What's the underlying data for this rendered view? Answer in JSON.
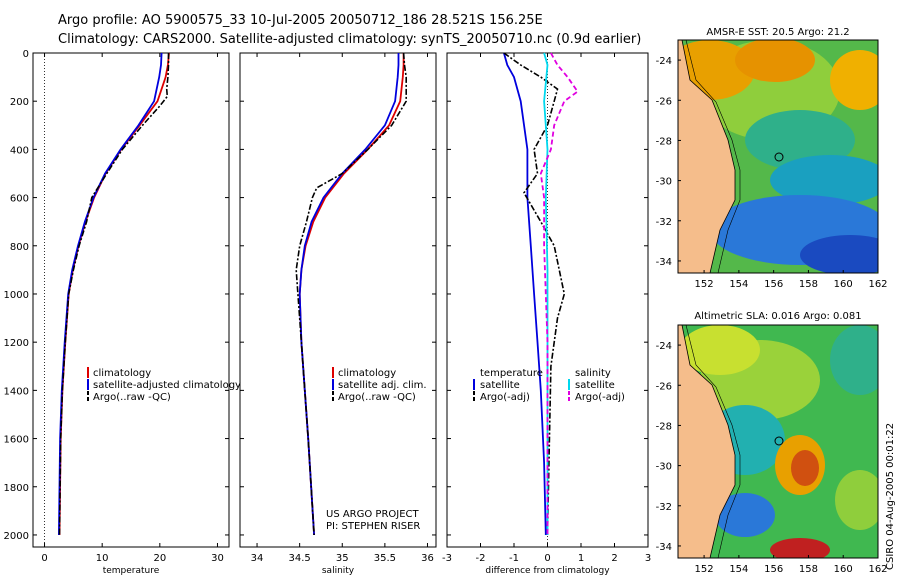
{
  "header": {
    "line1": "Argo profile: AO 5900575_33 10-Jul-2005 20050712_186 28.521S 156.25E",
    "line2": "Climatology: CARS2000. Satellite-adjusted climatology: synTS_20050710.nc (0.9d earlier)"
  },
  "credit": {
    "line1": "US ARGO PROJECT",
    "line2": "PI: STEPHEN RISER"
  },
  "side_caption": "CSIRO 04-Aug-2005 00:01:22",
  "colors": {
    "climatology": "#dd0000",
    "satellite": "#0000dd",
    "argo": "#000000",
    "cyan": "#00d8ee",
    "magenta": "#e000e0",
    "land": "#f5bd8b"
  },
  "chart_data": [
    {
      "type": "line",
      "title": "",
      "xlabel": "temperature",
      "ylabel": "",
      "xlim": [
        -2,
        32
      ],
      "ylim": [
        2050,
        0
      ],
      "xticks": [
        "0",
        "10",
        "20",
        "30"
      ],
      "yticks": [
        "0",
        "200",
        "400",
        "600",
        "800",
        "1000",
        "1200",
        "1400",
        "1600",
        "1800",
        "2000"
      ],
      "legend": [
        "climatology",
        "satellite-adjusted climatology",
        "Argo(..raw -QC)"
      ],
      "series": [
        {
          "name": "climatology",
          "color": "red",
          "dash": "solid",
          "x": [
            21.6,
            21.4,
            21.0,
            19.6,
            16.5,
            13.3,
            10.6,
            8.6,
            7.1,
            5.9,
            4.9,
            4.2,
            3.6,
            3.1,
            2.8,
            2.6
          ],
          "y": [
            0,
            50,
            100,
            200,
            300,
            400,
            500,
            600,
            700,
            800,
            900,
            1000,
            1200,
            1400,
            1600,
            2000
          ]
        },
        {
          "name": "satellite-adjusted climatology",
          "color": "blue",
          "dash": "solid",
          "x": [
            20.3,
            20.2,
            19.9,
            19.0,
            16.3,
            13.2,
            10.5,
            8.5,
            7.0,
            5.8,
            4.8,
            4.1,
            3.5,
            3.0,
            2.7,
            2.5
          ],
          "y": [
            0,
            50,
            100,
            200,
            300,
            400,
            500,
            600,
            700,
            800,
            900,
            1000,
            1200,
            1400,
            1600,
            2000
          ]
        },
        {
          "name": "Argo(..raw -QC)",
          "color": "black",
          "dash": "dashdot",
          "x": [
            21.5,
            21.5,
            21.4,
            21.2,
            21.3,
            20.0,
            17.0,
            13.5,
            10.8,
            8.7,
            8.2,
            7.3,
            6.0,
            5.0,
            4.2,
            3.6,
            3.1,
            2.8,
            2.6
          ],
          "y": [
            0,
            50,
            100,
            150,
            180,
            220,
            300,
            400,
            500,
            580,
            600,
            700,
            800,
            900,
            1000,
            1200,
            1400,
            1600,
            2000
          ]
        }
      ]
    },
    {
      "type": "line",
      "title": "",
      "xlabel": "salinity",
      "ylabel": "",
      "xlim": [
        33.8,
        36.1
      ],
      "ylim": [
        2050,
        0
      ],
      "xticks": [
        "34",
        "34.5",
        "35",
        "35.5",
        "36"
      ],
      "yticks": [],
      "legend": [
        "climatology",
        "satellite adj. clim.",
        "Argo(..raw -QC)"
      ],
      "series": [
        {
          "name": "climatology",
          "color": "red",
          "dash": "solid",
          "x": [
            35.72,
            35.72,
            35.71,
            35.68,
            35.55,
            35.3,
            35.02,
            34.8,
            34.66,
            34.57,
            34.52,
            34.5,
            34.52,
            34.56,
            34.6,
            34.67
          ],
          "y": [
            0,
            50,
            100,
            200,
            300,
            400,
            500,
            600,
            700,
            800,
            900,
            1000,
            1200,
            1400,
            1600,
            2000
          ]
        },
        {
          "name": "satellite adj. clim.",
          "color": "blue",
          "dash": "solid",
          "x": [
            35.66,
            35.66,
            35.65,
            35.62,
            35.5,
            35.27,
            35.0,
            34.78,
            34.64,
            34.56,
            34.52,
            34.5,
            34.52,
            34.56,
            34.6,
            34.67
          ],
          "y": [
            0,
            50,
            100,
            200,
            300,
            400,
            500,
            600,
            700,
            800,
            900,
            1000,
            1200,
            1400,
            1600,
            2000
          ]
        },
        {
          "name": "Argo(..raw -QC)",
          "color": "black",
          "dash": "dashdot",
          "x": [
            35.72,
            35.73,
            35.75,
            35.75,
            35.58,
            35.3,
            35.0,
            34.7,
            34.65,
            34.58,
            34.5,
            34.46,
            34.48,
            34.52,
            34.56,
            34.6,
            34.67
          ],
          "y": [
            0,
            50,
            100,
            200,
            300,
            400,
            500,
            560,
            600,
            700,
            800,
            900,
            1000,
            1200,
            1400,
            1600,
            2000
          ]
        }
      ]
    },
    {
      "type": "line",
      "title": "",
      "xlabel": "difference from climatology",
      "ylabel": "",
      "xlim": [
        -3,
        3
      ],
      "ylim": [
        2050,
        0
      ],
      "xticks": [
        "-3",
        "-2",
        "-1",
        "0",
        "1",
        "2",
        "3"
      ],
      "yticks": [],
      "legend": [
        "temperature",
        "satellite",
        "Argo(-adj)",
        "salinity",
        "satellite",
        "Argo(-adj)"
      ],
      "series": [
        {
          "name": "temperature satellite",
          "color": "blue",
          "dash": "solid",
          "x": [
            -1.3,
            -1.2,
            -1.0,
            -0.8,
            -0.6,
            -0.6,
            -0.5,
            -0.4,
            -0.3,
            -0.2,
            -0.1,
            -0.05
          ],
          "y": [
            0,
            50,
            100,
            200,
            400,
            600,
            800,
            1000,
            1200,
            1400,
            1700,
            2000
          ]
        },
        {
          "name": "temperature Argo(-adj)",
          "color": "black",
          "dash": "dashdot",
          "x": [
            -1.3,
            -0.8,
            -0.2,
            0.3,
            0.2,
            0.0,
            -0.4,
            -0.3,
            -0.7,
            -0.2,
            0.2,
            0.5,
            0.3,
            0.1,
            0.0
          ],
          "y": [
            0,
            50,
            100,
            150,
            200,
            300,
            400,
            500,
            580,
            700,
            800,
            1000,
            1100,
            1300,
            2000
          ]
        },
        {
          "name": "salinity satellite",
          "color": "cyan",
          "dash": "solid",
          "x": [
            -0.1,
            0.0,
            -0.1,
            0.0,
            -0.05,
            0.0,
            0.0,
            0.0
          ],
          "y": [
            0,
            50,
            200,
            400,
            600,
            900,
            1400,
            2000
          ]
        },
        {
          "name": "salinity Argo(-adj)",
          "color": "magenta",
          "dash": "dashed",
          "x": [
            0.1,
            0.3,
            0.6,
            0.9,
            0.5,
            0.2,
            0.1,
            -0.2,
            -0.1,
            -0.1,
            0.0,
            0.0
          ],
          "y": [
            0,
            50,
            100,
            160,
            200,
            300,
            400,
            500,
            600,
            800,
            1200,
            2000
          ]
        }
      ]
    }
  ],
  "maps": [
    {
      "title": "AMSR-E SST: 20.5 Argo: 21.2",
      "yticks": [
        "-24",
        "-26",
        "-28",
        "-30",
        "-32",
        "-34"
      ],
      "xticks": [
        "152",
        "154",
        "156",
        "158",
        "160",
        "162"
      ]
    },
    {
      "title": "Altimetric SLA: 0.016 Argo: 0.081",
      "yticks": [
        "-24",
        "-26",
        "-28",
        "-30",
        "-32",
        "-34"
      ],
      "xticks": [
        "152",
        "154",
        "156",
        "158",
        "160",
        "162"
      ]
    }
  ]
}
